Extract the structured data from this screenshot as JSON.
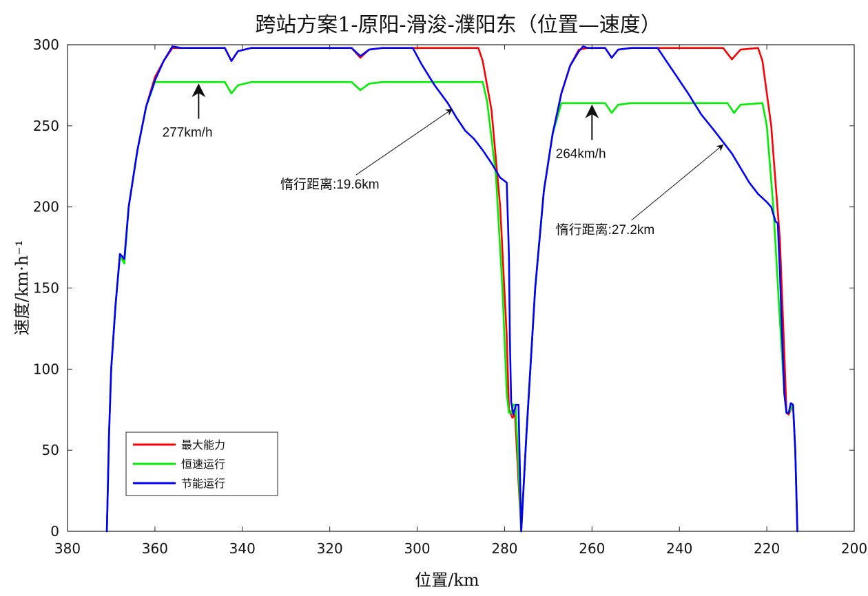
{
  "chart_data": {
    "type": "line",
    "title": "跨站方案1-原阳-滑浚-濮阳东（位置—速度）",
    "xlabel": "位置/km",
    "ylabel": "速度/km·h⁻¹",
    "xlim": [
      380,
      200
    ],
    "ylim": [
      0,
      300
    ],
    "x_reversed": true,
    "xticks": [
      380,
      360,
      340,
      320,
      300,
      280,
      260,
      240,
      220,
      200
    ],
    "yticks": [
      0,
      50,
      100,
      150,
      200,
      250,
      300
    ],
    "grid": false,
    "legend_position": "bottom-left",
    "series": [
      {
        "name": "最大能力",
        "color": "#ff0000",
        "points": [
          [
            371,
            0
          ],
          [
            370.5,
            60
          ],
          [
            370,
            100
          ],
          [
            369,
            140
          ],
          [
            368,
            170
          ],
          [
            367,
            167
          ],
          [
            366,
            200
          ],
          [
            364,
            235
          ],
          [
            362,
            262
          ],
          [
            360,
            280
          ],
          [
            358,
            290
          ],
          [
            356,
            298
          ],
          [
            354,
            298
          ],
          [
            344,
            298
          ],
          [
            342.5,
            290
          ],
          [
            341,
            296
          ],
          [
            338,
            298
          ],
          [
            315,
            298
          ],
          [
            313,
            292
          ],
          [
            311,
            297
          ],
          [
            308,
            298
          ],
          [
            286,
            298
          ],
          [
            285,
            290
          ],
          [
            283,
            260
          ],
          [
            281,
            200
          ],
          [
            279.5,
            120
          ],
          [
            279,
            75
          ],
          [
            278.2,
            70
          ],
          [
            277.6,
            72
          ],
          [
            277,
            40
          ],
          [
            276.2,
            0
          ],
          [
            275,
            60
          ],
          [
            273,
            150
          ],
          [
            271,
            210
          ],
          [
            269,
            245
          ],
          [
            267,
            270
          ],
          [
            265,
            287
          ],
          [
            263,
            297
          ],
          [
            261,
            298
          ],
          [
            257,
            298
          ],
          [
            255.5,
            292
          ],
          [
            254,
            297
          ],
          [
            251,
            298
          ],
          [
            230,
            298
          ],
          [
            228,
            291
          ],
          [
            226,
            297
          ],
          [
            222,
            298
          ],
          [
            221,
            290
          ],
          [
            219,
            250
          ],
          [
            217,
            180
          ],
          [
            216,
            110
          ],
          [
            215.5,
            73
          ],
          [
            215,
            72
          ],
          [
            214,
            78
          ],
          [
            213.5,
            50
          ],
          [
            213,
            0
          ]
        ]
      },
      {
        "name": "恒速运行",
        "color": "#00ee00",
        "points": [
          [
            371,
            0
          ],
          [
            370.5,
            60
          ],
          [
            370,
            100
          ],
          [
            369,
            140
          ],
          [
            368,
            170
          ],
          [
            367,
            165
          ],
          [
            366,
            200
          ],
          [
            364,
            235
          ],
          [
            362,
            262
          ],
          [
            360,
            277
          ],
          [
            344,
            277
          ],
          [
            342.5,
            270
          ],
          [
            341,
            275
          ],
          [
            338,
            277
          ],
          [
            315,
            277
          ],
          [
            313,
            272
          ],
          [
            311,
            276
          ],
          [
            308,
            277
          ],
          [
            285,
            277
          ],
          [
            284,
            265
          ],
          [
            282,
            220
          ],
          [
            280.5,
            150
          ],
          [
            279.5,
            85
          ],
          [
            279,
            73
          ],
          [
            278.5,
            73
          ],
          [
            278,
            78
          ],
          [
            277.5,
            78
          ],
          [
            277,
            50
          ],
          [
            276.2,
            0
          ],
          [
            275,
            60
          ],
          [
            273,
            150
          ],
          [
            271,
            210
          ],
          [
            269,
            245
          ],
          [
            267,
            264
          ],
          [
            257,
            264
          ],
          [
            255.5,
            258
          ],
          [
            254,
            263
          ],
          [
            251,
            264
          ],
          [
            229,
            264
          ],
          [
            227.5,
            258
          ],
          [
            226,
            263
          ],
          [
            221,
            264
          ],
          [
            220,
            250
          ],
          [
            218.5,
            200
          ],
          [
            217,
            130
          ],
          [
            216,
            85
          ],
          [
            215.5,
            73
          ],
          [
            215,
            73
          ],
          [
            214,
            78
          ],
          [
            213.5,
            50
          ],
          [
            213,
            0
          ]
        ]
      },
      {
        "name": "节能运行",
        "color": "#0000ff",
        "points": [
          [
            371,
            0
          ],
          [
            370.5,
            60
          ],
          [
            370,
            100
          ],
          [
            369,
            140
          ],
          [
            368,
            171
          ],
          [
            367,
            168
          ],
          [
            366,
            200
          ],
          [
            364,
            235
          ],
          [
            362,
            262
          ],
          [
            360,
            278
          ],
          [
            358,
            290
          ],
          [
            356,
            299
          ],
          [
            354,
            298
          ],
          [
            344,
            298
          ],
          [
            342.5,
            290
          ],
          [
            341,
            296
          ],
          [
            338,
            298
          ],
          [
            315,
            298
          ],
          [
            313,
            293
          ],
          [
            311,
            297
          ],
          [
            308,
            298
          ],
          [
            301,
            298
          ],
          [
            299,
            288
          ],
          [
            296,
            275
          ],
          [
            293,
            264
          ],
          [
            291,
            255
          ],
          [
            289,
            247
          ],
          [
            287,
            242
          ],
          [
            285,
            235
          ],
          [
            283,
            227
          ],
          [
            281,
            218
          ],
          [
            279.5,
            215
          ],
          [
            279,
            170
          ],
          [
            278.8,
            120
          ],
          [
            278.5,
            80
          ],
          [
            278,
            72
          ],
          [
            277.4,
            78
          ],
          [
            276.8,
            78
          ],
          [
            276.2,
            0
          ],
          [
            275,
            60
          ],
          [
            273,
            150
          ],
          [
            271,
            210
          ],
          [
            269,
            245
          ],
          [
            267,
            270
          ],
          [
            265,
            287
          ],
          [
            263,
            296
          ],
          [
            262,
            299
          ],
          [
            261,
            298
          ],
          [
            257,
            298
          ],
          [
            255.5,
            292
          ],
          [
            254,
            297
          ],
          [
            251,
            298
          ],
          [
            245,
            298
          ],
          [
            243,
            290
          ],
          [
            241,
            282
          ],
          [
            238,
            270
          ],
          [
            235,
            257
          ],
          [
            232,
            247
          ],
          [
            230,
            240
          ],
          [
            228,
            233
          ],
          [
            226,
            224
          ],
          [
            224,
            215
          ],
          [
            222,
            208
          ],
          [
            220,
            203
          ],
          [
            219,
            200
          ],
          [
            218,
            191
          ],
          [
            217.5,
            190
          ],
          [
            217,
            160
          ],
          [
            216.5,
            120
          ],
          [
            216,
            85
          ],
          [
            215.5,
            73
          ],
          [
            215,
            73
          ],
          [
            214.5,
            79
          ],
          [
            214,
            78
          ],
          [
            213.5,
            50
          ],
          [
            213,
            0
          ]
        ]
      }
    ],
    "annotations": [
      {
        "text": "277km/h",
        "arrow_target": [
          350,
          277
        ],
        "text_at": [
          352,
          245
        ]
      },
      {
        "text": "惰行距离:19.6km",
        "arrow_target": [
          292,
          262
        ],
        "text_at": [
          325,
          213
        ]
      },
      {
        "text": "264km/h",
        "arrow_target": [
          260,
          264
        ],
        "text_at": [
          262,
          232
        ]
      },
      {
        "text": "惰行距离:27.2km",
        "arrow_target": [
          230,
          240
        ],
        "text_at": [
          262,
          185
        ]
      }
    ]
  }
}
